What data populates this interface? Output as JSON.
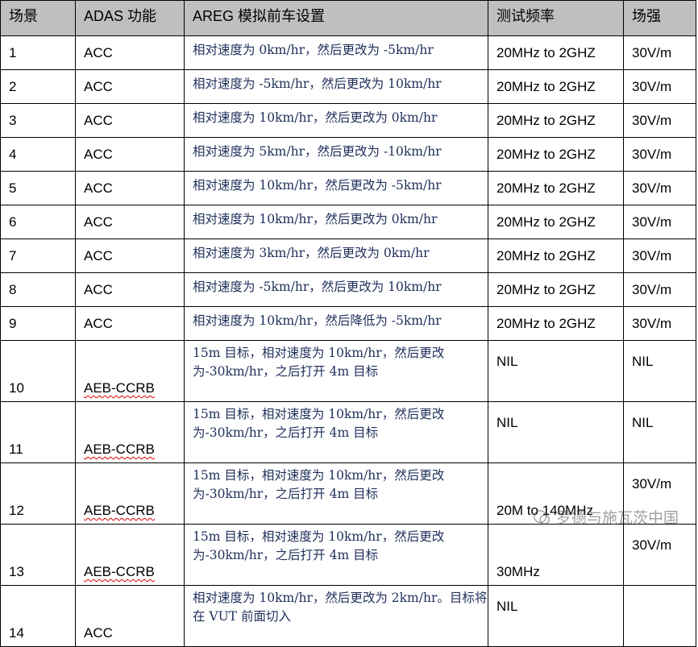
{
  "headers": [
    "场景",
    "ADAS 功能",
    "AREG 模拟前车设置",
    "测试频率",
    "场强"
  ],
  "rows": [
    {
      "id": "1",
      "func": "ACC",
      "setup": "相对速度为 0km/hr，然后更改为 -5km/hr",
      "freq": "20MHz to 2GHZ",
      "field": "30V/m"
    },
    {
      "id": "2",
      "func": "ACC",
      "setup": "相对速度为 -5km/hr，然后更改为 10km/hr",
      "freq": "20MHz to 2GHZ",
      "field": "30V/m"
    },
    {
      "id": "3",
      "func": "ACC",
      "setup": "相对速度为 10km/hr，然后更改为 0km/hr",
      "freq": "20MHz to 2GHZ",
      "field": "30V/m"
    },
    {
      "id": "4",
      "func": "ACC",
      "setup": "相对速度为 5km/hr，然后更改为 -10km/hr",
      "freq": "20MHz to 2GHZ",
      "field": "30V/m"
    },
    {
      "id": "5",
      "func": "ACC",
      "setup": "相对速度为 10km/hr，然后更改为 -5km/hr",
      "freq": "20MHz to 2GHZ",
      "field": "30V/m"
    },
    {
      "id": "6",
      "func": "ACC",
      "setup": "相对速度为 10km/hr，然后更改为 0km/hr",
      "freq": "20MHz to 2GHZ",
      "field": "30V/m"
    },
    {
      "id": "7",
      "func": "ACC",
      "setup": "相对速度为 3km/hr，然后更改为 0km/hr",
      "freq": "20MHz to 2GHZ",
      "field": "30V/m"
    },
    {
      "id": "8",
      "func": "ACC",
      "setup": "相对速度为 -5km/hr，然后更改为 10km/hr",
      "freq": "20MHz to 2GHZ",
      "field": "30V/m"
    },
    {
      "id": "9",
      "func": "ACC",
      "setup": "相对速度为 10km/hr，然后降低为 -5km/hr",
      "freq": "20MHz to 2GHZ",
      "field": "30V/m"
    },
    {
      "id": "10",
      "func": "AEB-CCRB",
      "setup": "15m 目标，相对速度为 10km/hr，然后更改为-30km/hr，之后打开 4m 目标",
      "freq": "NIL",
      "field": "NIL"
    },
    {
      "id": "11",
      "func": "AEB-CCRB",
      "setup": "15m 目标，相对速度为 10km/hr，然后更改为-30km/hr，之后打开 4m 目标",
      "freq": "NIL",
      "field": "NIL"
    },
    {
      "id": "12",
      "func": "AEB-CCRB",
      "setup": "15m 目标，相对速度为 10km/hr，然后更改为-30km/hr，之后打开 4m 目标",
      "freq": "20M to 140MHz",
      "field": "30V/m"
    },
    {
      "id": "13",
      "func": "AEB-CCRB",
      "setup": "15m 目标，相对速度为 10km/hr，然后更改为-30km/hr，之后打开 4m 目标",
      "freq": "30MHz",
      "field": "30V/m"
    },
    {
      "id": "14",
      "func": "ACC",
      "setup": "相对速度为 10km/hr，然后更改为 2km/hr。目标将在 VUT 前面切入",
      "freq": "NIL",
      "field": ""
    }
  ],
  "watermark": "罗德与施瓦茨中国"
}
